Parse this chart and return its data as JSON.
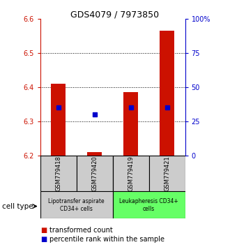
{
  "title": "GDS4079 / 7973850",
  "samples": [
    "GSM779418",
    "GSM779420",
    "GSM779419",
    "GSM779421"
  ],
  "transformed_counts": [
    6.41,
    6.21,
    6.385,
    6.565
  ],
  "percentile_ranks": [
    35,
    30,
    35,
    35
  ],
  "ylim_left": [
    6.2,
    6.6
  ],
  "ylim_right": [
    0,
    100
  ],
  "yticks_left": [
    6.2,
    6.3,
    6.4,
    6.5,
    6.6
  ],
  "yticks_right": [
    0,
    25,
    50,
    75,
    100
  ],
  "ytick_labels_right": [
    "0",
    "25",
    "50",
    "75",
    "100%"
  ],
  "bar_color": "#cc1100",
  "dot_color": "#0000cc",
  "bar_width": 0.4,
  "groups": [
    {
      "label": "Lipotransfer aspirate\nCD34+ cells",
      "samples": [
        0,
        1
      ],
      "color": "#cccccc"
    },
    {
      "label": "Leukapheresis CD34+\ncells",
      "samples": [
        2,
        3
      ],
      "color": "#66ff66"
    }
  ],
  "group_label": "cell type",
  "legend_items": [
    {
      "color": "#cc1100",
      "label": "transformed count"
    },
    {
      "color": "#0000cc",
      "label": "percentile rank within the sample"
    }
  ],
  "background_color": "#ffffff",
  "plot_bg": "#ffffff",
  "left_axis_color": "#cc1100",
  "right_axis_color": "#0000cc"
}
